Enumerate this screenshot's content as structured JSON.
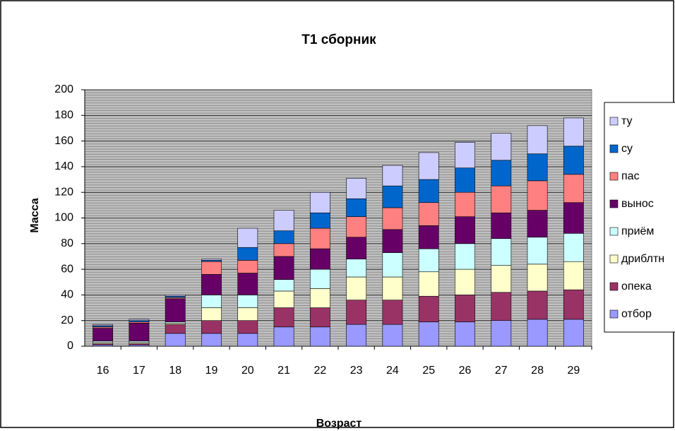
{
  "chart_data": {
    "type": "stacked_bar",
    "title": "T1 сборник",
    "x_label": "Возраст",
    "y_label": "Масса",
    "categories": [
      "16",
      "17",
      "18",
      "19",
      "20",
      "21",
      "22",
      "23",
      "24",
      "25",
      "26",
      "27",
      "28",
      "29"
    ],
    "series": [
      {
        "name": "отбор",
        "color": "#9999ff",
        "values": [
          1,
          1,
          10,
          10,
          10,
          15,
          15,
          17,
          17,
          19,
          19,
          20,
          21,
          21
        ]
      },
      {
        "name": "опека",
        "color": "#993366",
        "values": [
          1,
          1,
          7,
          10,
          10,
          15,
          15,
          19,
          19,
          20,
          21,
          22,
          22,
          23
        ]
      },
      {
        "name": "дриблтн",
        "color": "#ffffcc",
        "values": [
          1,
          1,
          1,
          10,
          10,
          13,
          15,
          18,
          18,
          19,
          20,
          21,
          21,
          22
        ]
      },
      {
        "name": "приём",
        "color": "#ccffff",
        "values": [
          1,
          1,
          1,
          10,
          10,
          9,
          15,
          14,
          19,
          18,
          20,
          21,
          21,
          22
        ]
      },
      {
        "name": "вынос",
        "color": "#660066",
        "values": [
          10,
          14,
          18,
          16,
          17,
          18,
          16,
          17,
          18,
          18,
          21,
          20,
          21,
          24
        ]
      },
      {
        "name": "пас",
        "color": "#ff8080",
        "values": [
          1,
          1,
          1,
          10,
          10,
          10,
          16,
          16,
          17,
          18,
          19,
          21,
          23,
          22
        ]
      },
      {
        "name": "су",
        "color": "#0066cc",
        "values": [
          1,
          1,
          1,
          1,
          10,
          10,
          12,
          14,
          17,
          18,
          19,
          20,
          21,
          22
        ]
      },
      {
        "name": "ту",
        "color": "#ccccff",
        "values": [
          1,
          1,
          1,
          1,
          15,
          16,
          16,
          16,
          16,
          21,
          20,
          21,
          22,
          22
        ]
      }
    ],
    "ylim": [
      0,
      200
    ],
    "yticks": [
      0,
      20,
      40,
      60,
      80,
      100,
      120,
      140,
      160,
      180,
      200
    ],
    "grid": true
  }
}
